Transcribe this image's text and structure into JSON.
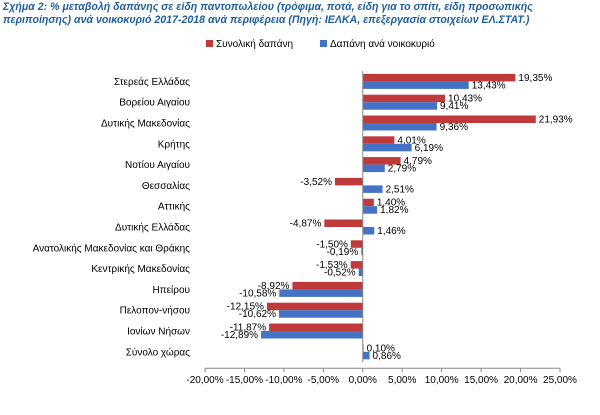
{
  "title": {
    "line1": "Σχήμα 2: % μεταβολή δαπάνης σε είδη παντοπωλείου (τρόφιμα, ποτά, είδη για το σπίτι, είδη προσωπικής",
    "line2": "περιποίησης) ανά νοικοκυριό 2017-2018 ανά περιφέρεια (Πηγή: ΙΕΛΚΑ, επεξεργασία στοιχείων ΕΛ.ΣΤΑΤ.)"
  },
  "chart_data": {
    "type": "bar",
    "orientation": "horizontal",
    "categories": [
      "Στερεάς Ελλάδας",
      "Βορείου Αιγαίου",
      "Δυτικής Μακεδονίας",
      "Κρήτης",
      "Νοτίου Αιγαίου",
      "Θεσσαλίας",
      "Αττικής",
      "Δυτικής Ελλάδας",
      "Ανατολικής Μακεδονίας και Θράκης",
      "Κεντρικής Μακεδονίας",
      "Ηπείρου",
      "Πελοπον-νήσου",
      "Ιονίων Νήσων",
      "Σύνολο χώρας"
    ],
    "series": [
      {
        "name": "Συνολική δαπάνη",
        "color": "#c0393b",
        "values": [
          19.35,
          10.43,
          21.93,
          4.01,
          4.79,
          -3.52,
          1.4,
          -4.87,
          -1.5,
          -1.53,
          -8.92,
          -12.15,
          -11.87,
          0.1
        ],
        "labels": [
          "19,35%",
          "10,43%",
          "21,93%",
          "4,01%",
          "4,79%",
          "-3,52%",
          "1,40%",
          "-4,87%",
          "-1,50%",
          "-1,53%",
          "-8,92%",
          "-12,15%",
          "-11,87%",
          "0,10%"
        ]
      },
      {
        "name": "Δαπάνη ανά νοικοκυριό",
        "color": "#4472c4",
        "values": [
          13.43,
          9.41,
          9.36,
          6.19,
          2.79,
          2.51,
          1.82,
          1.46,
          -0.19,
          -0.52,
          -10.58,
          -10.62,
          -12.89,
          0.86
        ],
        "labels": [
          "13,43%",
          "9,41%",
          "9,36%",
          "6,19%",
          "2,79%",
          "2,51%",
          "1,82%",
          "1,46%",
          "-0,19%",
          "-0,52%",
          "-10,58%",
          "-10,62%",
          "-12,89%",
          "0,86%"
        ]
      }
    ],
    "xlim": [
      -20,
      25
    ],
    "xticks": [
      -20,
      -15,
      -10,
      -5,
      0,
      5,
      10,
      15,
      20,
      25
    ],
    "xtick_labels": [
      "-20,00%",
      "-15,00%",
      "-10,00%",
      "-5,00%",
      "0,00%",
      "5,00%",
      "10,00%",
      "15,00%",
      "20,00%",
      "25,00%"
    ],
    "legend_position": "top-center",
    "grid": false
  }
}
